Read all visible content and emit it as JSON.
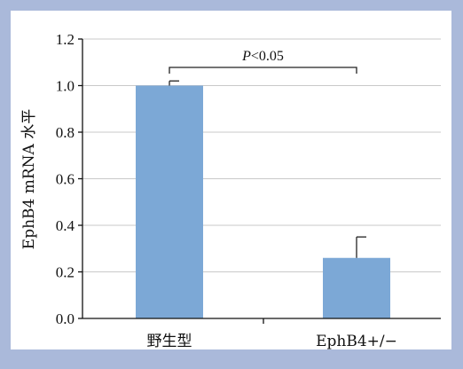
{
  "chart_data": {
    "type": "bar",
    "categories": [
      "野生型",
      "EphB4+/−"
    ],
    "values": [
      1.0,
      0.26
    ],
    "error_upper": [
      1.02,
      0.35
    ],
    "ylabel": "EphB4 mRNA 水平",
    "xlabel": "",
    "ylim": [
      0,
      1.2
    ],
    "yticks": [
      "0.0",
      "0.2",
      "0.4",
      "0.6",
      "0.8",
      "1.0",
      "1.2"
    ],
    "grid": true,
    "annotation": {
      "prefix": "P",
      "text": "<0.05"
    },
    "colors": {
      "bar": "#7ca8d6",
      "plot_background": "#ffffff",
      "frame_background": "#aab9da",
      "grid": "#c9c9c9",
      "axis": "#111111"
    }
  }
}
